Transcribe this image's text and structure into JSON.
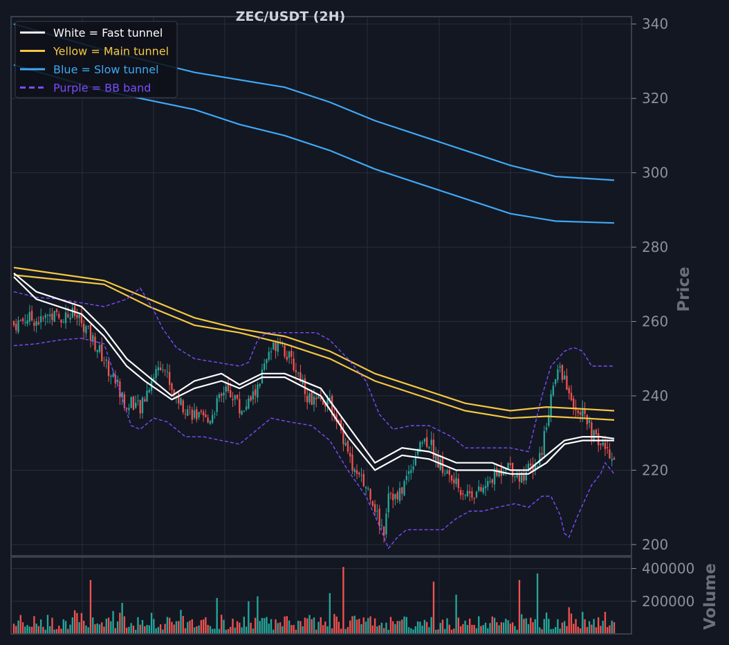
{
  "colors": {
    "background": "#131722",
    "grid": "#2a2e39",
    "frame": "#3a3f4b",
    "text": "#e0e3eb",
    "axis_text": "#8e919a",
    "up": "#26a69a",
    "down": "#ef5350",
    "fast": "#ffffff",
    "main": "#f5c842",
    "slow": "#3fa9f5",
    "bb": "#7c4dff"
  },
  "chart_data": {
    "type": "candlestick",
    "title": "ZEC/USDT (2H)",
    "ylabel": "Price",
    "volume_label": "Volume",
    "ylim": [
      197,
      342
    ],
    "yticks": [
      "200",
      "220",
      "240",
      "260",
      "280",
      "300",
      "320",
      "340"
    ],
    "volume_ylim": [
      0,
      470000
    ],
    "volume_ticks": [
      "200000",
      "400000"
    ],
    "legend": {
      "position": "top-left",
      "entries": [
        {
          "label": "White = Fast tunnel",
          "color": "#ffffff",
          "style": "solid"
        },
        {
          "label": "Yellow = Main tunnel",
          "color": "#f5c842",
          "style": "solid"
        },
        {
          "label": "Blue = Slow tunnel",
          "color": "#3fa9f5",
          "style": "solid"
        },
        {
          "label": "Purple = BB band",
          "color": "#7c4dff",
          "style": "dashed"
        }
      ]
    },
    "candle_close_path": [
      [
        0,
        259
      ],
      [
        6,
        261
      ],
      [
        12,
        260
      ],
      [
        16,
        262
      ],
      [
        20,
        261
      ],
      [
        26,
        262
      ],
      [
        30,
        260
      ],
      [
        34,
        256
      ],
      [
        38,
        252
      ],
      [
        42,
        247
      ],
      [
        46,
        243
      ],
      [
        50,
        236
      ],
      [
        52,
        239
      ],
      [
        56,
        236
      ],
      [
        60,
        243
      ],
      [
        64,
        248
      ],
      [
        66,
        249
      ],
      [
        70,
        242
      ],
      [
        74,
        238
      ],
      [
        78,
        236
      ],
      [
        82,
        234
      ],
      [
        86,
        233
      ],
      [
        90,
        238
      ],
      [
        94,
        241
      ],
      [
        98,
        240
      ],
      [
        100,
        236
      ],
      [
        104,
        238
      ],
      [
        108,
        242
      ],
      [
        110,
        246
      ],
      [
        114,
        252
      ],
      [
        118,
        256
      ],
      [
        120,
        252
      ],
      [
        124,
        248
      ],
      [
        128,
        244
      ],
      [
        130,
        240
      ],
      [
        134,
        238
      ],
      [
        138,
        239
      ],
      [
        142,
        236
      ],
      [
        144,
        232
      ],
      [
        148,
        226
      ],
      [
        150,
        220
      ],
      [
        154,
        217
      ],
      [
        158,
        214
      ],
      [
        162,
        206
      ],
      [
        164,
        204
      ],
      [
        166,
        215
      ],
      [
        170,
        212
      ],
      [
        174,
        218
      ],
      [
        176,
        221
      ],
      [
        180,
        228
      ],
      [
        184,
        228
      ],
      [
        188,
        222
      ],
      [
        192,
        219
      ],
      [
        196,
        216
      ],
      [
        200,
        214
      ],
      [
        202,
        214
      ],
      [
        206,
        214
      ],
      [
        210,
        216
      ],
      [
        212,
        218
      ],
      [
        216,
        220
      ],
      [
        218,
        222
      ],
      [
        220,
        221
      ],
      [
        224,
        218
      ],
      [
        228,
        220
      ],
      [
        232,
        222
      ],
      [
        234,
        226
      ],
      [
        236,
        233
      ],
      [
        238,
        240
      ],
      [
        240,
        244
      ],
      [
        242,
        248
      ],
      [
        244,
        244
      ],
      [
        246,
        240
      ],
      [
        248,
        238
      ],
      [
        250,
        237
      ],
      [
        252,
        235
      ],
      [
        254,
        233
      ],
      [
        256,
        230
      ],
      [
        258,
        228
      ],
      [
        260,
        227
      ],
      [
        262,
        226
      ],
      [
        264,
        225
      ],
      [
        266,
        224
      ]
    ],
    "overlays": {
      "fast_upper": [
        [
          0,
          273
        ],
        [
          10,
          268
        ],
        [
          30,
          264
        ],
        [
          40,
          258
        ],
        [
          50,
          250
        ],
        [
          58,
          246
        ],
        [
          70,
          240
        ],
        [
          80,
          244
        ],
        [
          92,
          246
        ],
        [
          100,
          243
        ],
        [
          110,
          246
        ],
        [
          120,
          246
        ],
        [
          136,
          242
        ],
        [
          148,
          232
        ],
        [
          160,
          222
        ],
        [
          172,
          226
        ],
        [
          184,
          225
        ],
        [
          196,
          222
        ],
        [
          204,
          222
        ],
        [
          212,
          222
        ],
        [
          220,
          220
        ],
        [
          228,
          220
        ],
        [
          236,
          224
        ],
        [
          244,
          228
        ],
        [
          252,
          229
        ],
        [
          260,
          229
        ],
        [
          266,
          228.5
        ]
      ],
      "fast_lower": [
        [
          0,
          272
        ],
        [
          10,
          266
        ],
        [
          30,
          262
        ],
        [
          40,
          256
        ],
        [
          50,
          248
        ],
        [
          58,
          244
        ],
        [
          70,
          239
        ],
        [
          80,
          242
        ],
        [
          92,
          244
        ],
        [
          100,
          242
        ],
        [
          110,
          245
        ],
        [
          120,
          245
        ],
        [
          136,
          240
        ],
        [
          148,
          229
        ],
        [
          160,
          220
        ],
        [
          172,
          224
        ],
        [
          184,
          223
        ],
        [
          196,
          220
        ],
        [
          204,
          220
        ],
        [
          212,
          220
        ],
        [
          220,
          219
        ],
        [
          228,
          219
        ],
        [
          236,
          222
        ],
        [
          244,
          227
        ],
        [
          252,
          228
        ],
        [
          260,
          228
        ],
        [
          266,
          228
        ]
      ],
      "main_upper": [
        [
          0,
          274.5
        ],
        [
          40,
          271
        ],
        [
          60,
          266
        ],
        [
          80,
          261
        ],
        [
          100,
          258
        ],
        [
          120,
          256
        ],
        [
          140,
          252
        ],
        [
          160,
          246
        ],
        [
          180,
          242
        ],
        [
          200,
          238
        ],
        [
          220,
          236
        ],
        [
          236,
          237
        ],
        [
          252,
          236.5
        ],
        [
          266,
          236
        ]
      ],
      "main_lower": [
        [
          0,
          272.5
        ],
        [
          40,
          270
        ],
        [
          60,
          264
        ],
        [
          80,
          259
        ],
        [
          100,
          257
        ],
        [
          120,
          254
        ],
        [
          140,
          250
        ],
        [
          160,
          244
        ],
        [
          180,
          240
        ],
        [
          200,
          236
        ],
        [
          220,
          234
        ],
        [
          236,
          234.5
        ],
        [
          252,
          234
        ],
        [
          266,
          233.5
        ]
      ],
      "slow_upper": [
        [
          0,
          340
        ],
        [
          40,
          333
        ],
        [
          80,
          327
        ],
        [
          120,
          323
        ],
        [
          140,
          319
        ],
        [
          160,
          314
        ],
        [
          180,
          310
        ],
        [
          200,
          306
        ],
        [
          220,
          302
        ],
        [
          240,
          299
        ],
        [
          266,
          298
        ]
      ],
      "slow_lower": [
        [
          0,
          329
        ],
        [
          40,
          322
        ],
        [
          80,
          317
        ],
        [
          100,
          313
        ],
        [
          120,
          310
        ],
        [
          140,
          306
        ],
        [
          160,
          301
        ],
        [
          180,
          297
        ],
        [
          200,
          293
        ],
        [
          220,
          289
        ],
        [
          240,
          287
        ],
        [
          266,
          286.5
        ]
      ],
      "bb_upper": [
        [
          0,
          268
        ],
        [
          10,
          266.5
        ],
        [
          20,
          266
        ],
        [
          30,
          265
        ],
        [
          40,
          264
        ],
        [
          50,
          266
        ],
        [
          56,
          269
        ],
        [
          62,
          263
        ],
        [
          66,
          258
        ],
        [
          72,
          253
        ],
        [
          80,
          250
        ],
        [
          90,
          249
        ],
        [
          100,
          248
        ],
        [
          104,
          249
        ],
        [
          108,
          255
        ],
        [
          112,
          257
        ],
        [
          124,
          257
        ],
        [
          134,
          257
        ],
        [
          140,
          255
        ],
        [
          148,
          250
        ],
        [
          156,
          244
        ],
        [
          162,
          235
        ],
        [
          168,
          231
        ],
        [
          176,
          232
        ],
        [
          184,
          232
        ],
        [
          194,
          229
        ],
        [
          200,
          226
        ],
        [
          210,
          226
        ],
        [
          220,
          226
        ],
        [
          228,
          225
        ],
        [
          234,
          240
        ],
        [
          238,
          248
        ],
        [
          244,
          252
        ],
        [
          248,
          253
        ],
        [
          252,
          252
        ],
        [
          256,
          248
        ],
        [
          266,
          248
        ]
      ],
      "bb_lower": [
        [
          0,
          253.5
        ],
        [
          10,
          254
        ],
        [
          20,
          255
        ],
        [
          30,
          255.5
        ],
        [
          40,
          254
        ],
        [
          46,
          243
        ],
        [
          52,
          232
        ],
        [
          56,
          231
        ],
        [
          62,
          234
        ],
        [
          68,
          233
        ],
        [
          76,
          229
        ],
        [
          84,
          229
        ],
        [
          92,
          228
        ],
        [
          100,
          227
        ],
        [
          108,
          231
        ],
        [
          114,
          234
        ],
        [
          122,
          233
        ],
        [
          132,
          232
        ],
        [
          140,
          228
        ],
        [
          148,
          220
        ],
        [
          156,
          213
        ],
        [
          162,
          205
        ],
        [
          166,
          199
        ],
        [
          170,
          202
        ],
        [
          174,
          204
        ],
        [
          184,
          204
        ],
        [
          190,
          204
        ],
        [
          196,
          207
        ],
        [
          202,
          209
        ],
        [
          208,
          209
        ],
        [
          214,
          210
        ],
        [
          222,
          211
        ],
        [
          228,
          210
        ],
        [
          234,
          213
        ],
        [
          238,
          213
        ],
        [
          242,
          208
        ],
        [
          244,
          203
        ],
        [
          246,
          202
        ],
        [
          250,
          208
        ],
        [
          256,
          216
        ],
        [
          260,
          219
        ],
        [
          262,
          222
        ],
        [
          266,
          219
        ]
      ]
    }
  }
}
